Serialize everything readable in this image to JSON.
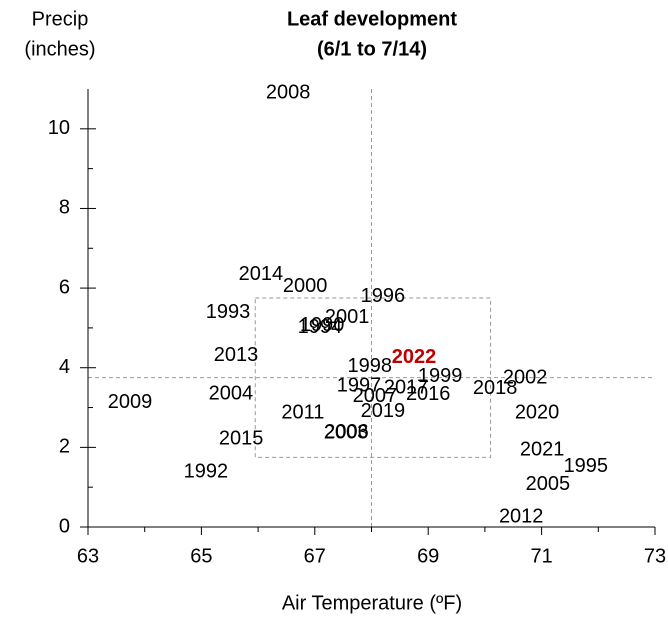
{
  "chart_data": {
    "type": "scatter",
    "title": [
      "Leaf development",
      "(6/1 to 7/14)"
    ],
    "y_label": [
      "Precip",
      "(inches)"
    ],
    "x_label": "Air Temperature (ºF)",
    "xlim": [
      63,
      73
    ],
    "ylim": [
      0,
      11
    ],
    "xticks": [
      63,
      65,
      67,
      69,
      71,
      73
    ],
    "x_minor_ticks": [
      64,
      66,
      68,
      70,
      72
    ],
    "yticks": [
      0,
      2,
      4,
      6,
      8,
      10
    ],
    "y_minor_ticks": [
      1,
      3,
      5,
      7,
      9
    ],
    "reference_lines": {
      "x": 68,
      "y": 3.75
    },
    "range_box": {
      "x": [
        65.95,
        70.1
      ],
      "y": [
        1.75,
        5.75
      ]
    },
    "points": [
      {
        "label": "2008",
        "x": 66.53,
        "y": 10.9
      },
      {
        "label": "2014",
        "x": 66.05,
        "y": 6.33
      },
      {
        "label": "2000",
        "x": 66.83,
        "y": 6.03
      },
      {
        "label": "1996",
        "x": 68.2,
        "y": 5.78
      },
      {
        "label": "1993",
        "x": 65.47,
        "y": 5.38
      },
      {
        "label": "2001",
        "x": 67.57,
        "y": 5.25
      },
      {
        "label": "1994",
        "x": 67.09,
        "y": 5.0
      },
      {
        "label": "1990",
        "x": 67.13,
        "y": 5.05
      },
      {
        "label": "2013",
        "x": 65.61,
        "y": 4.3
      },
      {
        "label": "1998",
        "x": 67.97,
        "y": 4.02
      },
      {
        "label": "2022",
        "x": 68.75,
        "y": 4.25,
        "color": "#c00000",
        "bold": true
      },
      {
        "label": "1999",
        "x": 69.21,
        "y": 3.77
      },
      {
        "label": "2002",
        "x": 70.71,
        "y": 3.74
      },
      {
        "label": "2009",
        "x": 63.74,
        "y": 3.12
      },
      {
        "label": "2004",
        "x": 65.52,
        "y": 3.34
      },
      {
        "label": "1997",
        "x": 67.78,
        "y": 3.54
      },
      {
        "label": "2017",
        "x": 68.61,
        "y": 3.49
      },
      {
        "label": "2018",
        "x": 70.18,
        "y": 3.47
      },
      {
        "label": "2007",
        "x": 68.06,
        "y": 3.27
      },
      {
        "label": "2016",
        "x": 69.0,
        "y": 3.32
      },
      {
        "label": "2020",
        "x": 70.92,
        "y": 2.86
      },
      {
        "label": "2011",
        "x": 66.79,
        "y": 2.86
      },
      {
        "label": "2019",
        "x": 68.2,
        "y": 2.89
      },
      {
        "label": "2003",
        "x": 67.55,
        "y": 2.36
      },
      {
        "label": "2006",
        "x": 67.56,
        "y": 2.37
      },
      {
        "label": "2015",
        "x": 65.7,
        "y": 2.21
      },
      {
        "label": "2021",
        "x": 71.01,
        "y": 1.93
      },
      {
        "label": "1995",
        "x": 71.78,
        "y": 1.51
      },
      {
        "label": "1992",
        "x": 65.08,
        "y": 1.38
      },
      {
        "label": "2005",
        "x": 71.11,
        "y": 1.06
      },
      {
        "label": "2012",
        "x": 70.64,
        "y": 0.25
      }
    ]
  }
}
